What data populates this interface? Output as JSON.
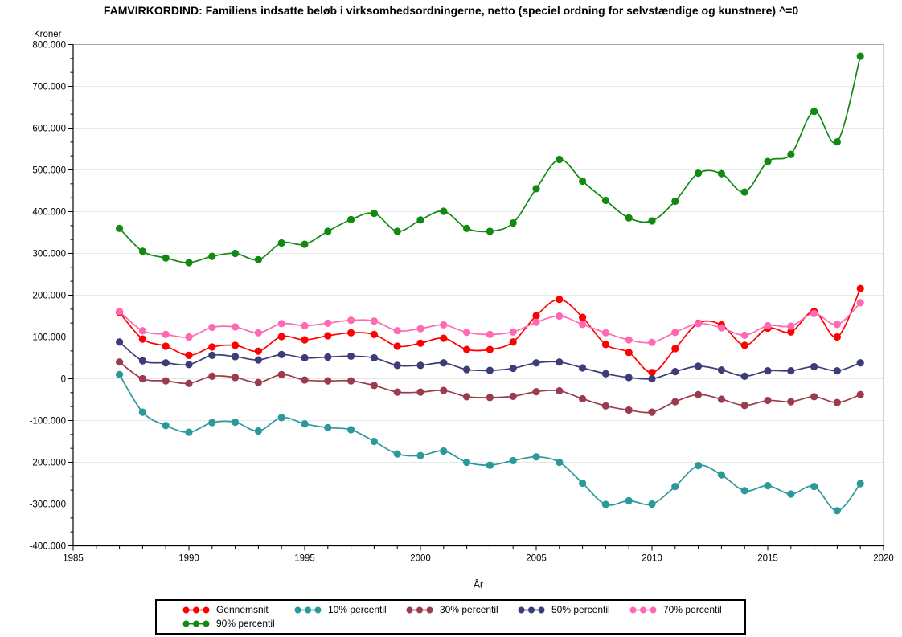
{
  "title": "FAMVIRKORDIND: Familiens indsatte beløb i virksomhedsordningerne, netto (speciel ordning for selvstændige og kunstnere) ^=0",
  "y_axis": {
    "label": "Kroner",
    "min": -400000,
    "max": 800000,
    "major_tick_interval": 100000,
    "minor_ticks_per_interval": 2,
    "tick_labels": [
      "800.000",
      "700.000",
      "600.000",
      "500.000",
      "400.000",
      "300.000",
      "200.000",
      "100.000",
      "0",
      "-100.000",
      "-200.000",
      "-300.000",
      "-400.000"
    ]
  },
  "x_axis": {
    "label": "År",
    "min": 1985,
    "max": 2020,
    "major_tick_interval": 5,
    "minor_tick_interval": 1,
    "tick_labels": [
      "1985",
      "1990",
      "1995",
      "2000",
      "2005",
      "2010",
      "2015",
      "2020"
    ]
  },
  "legend": {
    "items": [
      {
        "label": "Gennemsnit",
        "color": "#ff0000"
      },
      {
        "label": "10% percentil",
        "color": "#2b9999"
      },
      {
        "label": "30% percentil",
        "color": "#9c3b4e"
      },
      {
        "label": "50% percentil",
        "color": "#3c3c78"
      },
      {
        "label": "70% percentil",
        "color": "#ff69b4"
      },
      {
        "label": "90% percentil",
        "color": "#128a12"
      }
    ]
  },
  "colors": {
    "gridline": "#e8e8e8",
    "frame": "#a6a6a6",
    "axis": "#000000",
    "background": "#ffffff"
  },
  "chart_data": {
    "type": "line",
    "title": "FAMVIRKORDIND: Familiens indsatte beløb i virksomhedsordningerne, netto (speciel ordning for selvstændige og kunstnere) ^=0",
    "xlabel": "År",
    "ylabel": "Kroner",
    "xlim": [
      1985,
      2020
    ],
    "ylim": [
      -400000,
      800000
    ],
    "grid": "horizontal",
    "legend_position": "bottom",
    "marker": "circle",
    "x": [
      1987,
      1988,
      1989,
      1990,
      1991,
      1992,
      1993,
      1994,
      1995,
      1996,
      1997,
      1998,
      1999,
      2000,
      2001,
      2002,
      2003,
      2004,
      2005,
      2006,
      2007,
      2008,
      2009,
      2010,
      2011,
      2012,
      2013,
      2014,
      2015,
      2016,
      2017,
      2018,
      2019
    ],
    "series": [
      {
        "name": "Gennemsnit",
        "color": "#ff0000",
        "values": [
          159000,
          95000,
          78000,
          56000,
          76000,
          80000,
          66000,
          101000,
          93000,
          103000,
          110000,
          106000,
          78000,
          85000,
          97000,
          70000,
          70000,
          88000,
          151000,
          190000,
          147000,
          82000,
          63000,
          15000,
          72000,
          133000,
          129000,
          80000,
          121000,
          112000,
          161000,
          100000,
          216000
        ]
      },
      {
        "name": "10% percentil",
        "color": "#2b9999",
        "values": [
          10000,
          -80000,
          -112000,
          -128000,
          -105000,
          -104000,
          -125000,
          -93000,
          -108000,
          -117000,
          -122000,
          -150000,
          -180000,
          -184000,
          -173000,
          -200000,
          -207000,
          -196000,
          -187000,
          -200000,
          -250000,
          -301000,
          -292000,
          -300000,
          -258000,
          -208000,
          -230000,
          -268000,
          -256000,
          -276000,
          -258000,
          -316000,
          -251000
        ]
      },
      {
        "name": "30% percentil",
        "color": "#9c3b4e",
        "values": [
          40000,
          0,
          -5000,
          -11000,
          6000,
          3000,
          -9000,
          10000,
          -3000,
          -5000,
          -5000,
          -16000,
          -32000,
          -32000,
          -28000,
          -43000,
          -45000,
          -42000,
          -31000,
          -29000,
          -48000,
          -65000,
          -75000,
          -80000,
          -55000,
          -38000,
          -49000,
          -64000,
          -52000,
          -55000,
          -43000,
          -57000,
          -38000
        ]
      },
      {
        "name": "50% percentil",
        "color": "#3c3c78",
        "values": [
          88000,
          43000,
          38000,
          34000,
          56000,
          53000,
          45000,
          58000,
          50000,
          52000,
          54000,
          50000,
          32000,
          32000,
          38000,
          22000,
          20000,
          25000,
          38000,
          40000,
          26000,
          12000,
          3000,
          0,
          17000,
          30000,
          21000,
          6000,
          19000,
          19000,
          29000,
          19000,
          38000
        ]
      },
      {
        "name": "70% percentil",
        "color": "#ff69b4",
        "values": [
          161000,
          115000,
          106000,
          100000,
          123000,
          124000,
          110000,
          132000,
          127000,
          133000,
          140000,
          138000,
          115000,
          120000,
          129000,
          111000,
          106000,
          112000,
          135000,
          150000,
          130000,
          110000,
          93000,
          87000,
          111000,
          132000,
          122000,
          104000,
          127000,
          126000,
          156000,
          130000,
          182000
        ]
      },
      {
        "name": "90% percentil",
        "color": "#128a12",
        "values": [
          360000,
          305000,
          289000,
          278000,
          293000,
          300000,
          285000,
          325000,
          322000,
          353000,
          381000,
          396000,
          353000,
          380000,
          401000,
          360000,
          353000,
          373000,
          455000,
          525000,
          473000,
          427000,
          385000,
          378000,
          425000,
          492000,
          491000,
          447000,
          520000,
          537000,
          640000,
          567000,
          772000
        ]
      }
    ]
  }
}
